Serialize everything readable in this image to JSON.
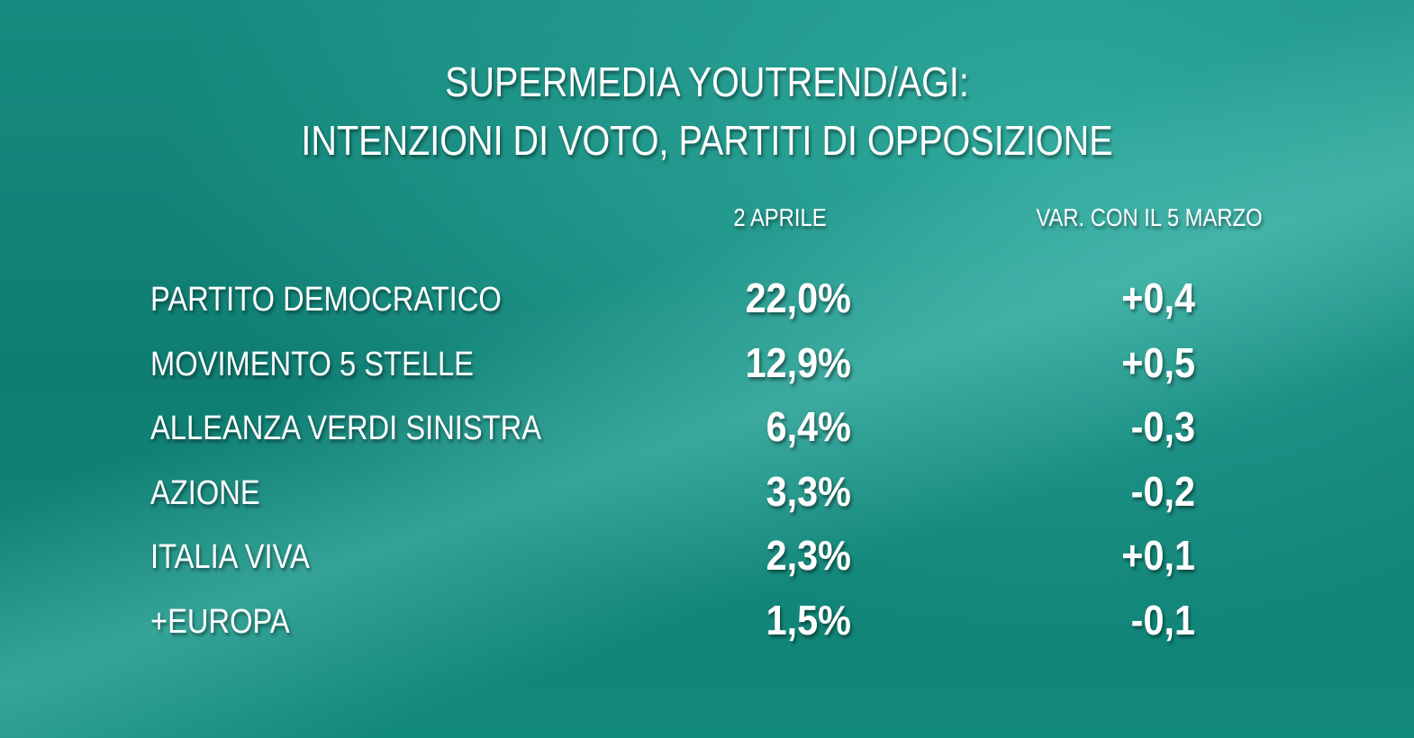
{
  "header": {
    "title_lines": [
      "SUPERMEDIA YOUTREND/AGI:",
      "INTENZIONI DI VOTO, PARTITI DI OPPOSIZIONE"
    ]
  },
  "table": {
    "columns": [
      "2 APRILE",
      "VAR. CON IL 5 MARZO"
    ],
    "rows": [
      [
        "PARTITO DEMOCRATICO",
        "22,0%",
        "+0,4"
      ],
      [
        "MOVIMENTO 5 STELLE",
        "12,9%",
        "+0,5"
      ],
      [
        "ALLEANZA VERDI SINISTRA",
        "6,4%",
        "-0,3"
      ],
      [
        "AZIONE",
        "3,3%",
        "-0,2"
      ],
      [
        "ITALIA VIVA",
        "2,3%",
        "+0,1"
      ],
      [
        "+EUROPA",
        "1,5%",
        "-0,1"
      ]
    ]
  }
}
